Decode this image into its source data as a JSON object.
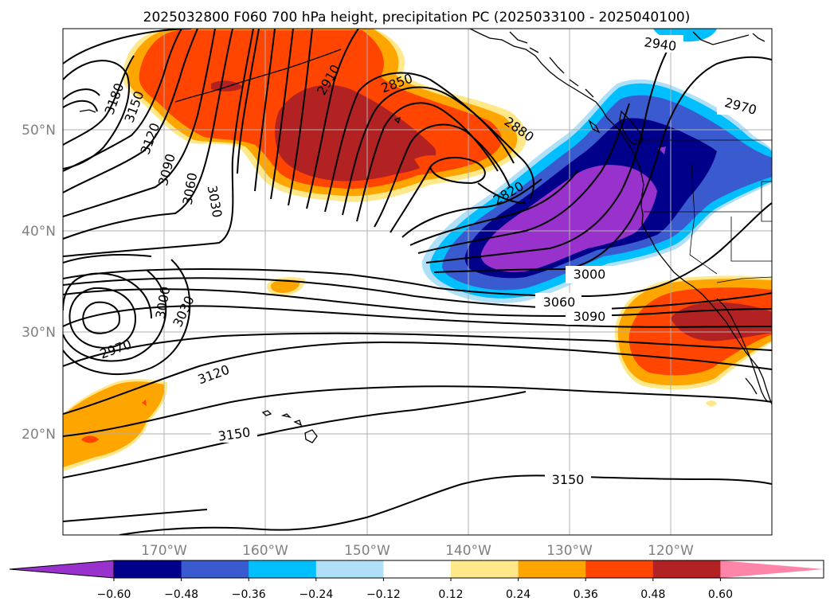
{
  "title": "2025032800 F060 700 hPa height, precipitation PC (2025033100 - 2025040100)",
  "lon_ticks": [
    "170°W",
    "160°W",
    "150°W",
    "140°W",
    "130°W",
    "120°W"
  ],
  "lat_ticks": [
    "50°N",
    "40°N",
    "30°N",
    "20°N"
  ],
  "contour_labels": {
    "c2940": "2940",
    "c2970a": "2970",
    "c2850": "2850",
    "c2880": "2880",
    "c2910": "2910",
    "c2820": "2820",
    "c3180": "3180",
    "c3150a": "3150",
    "c3120a": "3120",
    "c3090a": "3090",
    "c3060a": "3060",
    "c3030a": "3030",
    "c3000a": "3000",
    "c3030b": "3030",
    "c2970b": "2970",
    "c3000b": "3000",
    "c3060b": "3060",
    "c3090b": "3090",
    "c3120b": "3120",
    "c3150b": "3150",
    "c3150c": "3150"
  },
  "colorbar": {
    "colors": [
      "#9932cc",
      "#00008b",
      "#3a5bd0",
      "#00bfff",
      "#b0e0f8",
      "#ffffff",
      "#ffe88a",
      "#ffa500",
      "#ff4500",
      "#b22222",
      "#ff85a8"
    ],
    "tick_labels": [
      "−0.60",
      "−0.48",
      "−0.36",
      "−0.24",
      "−0.12",
      "0.12",
      "0.24",
      "0.36",
      "0.48",
      "0.60"
    ]
  }
}
